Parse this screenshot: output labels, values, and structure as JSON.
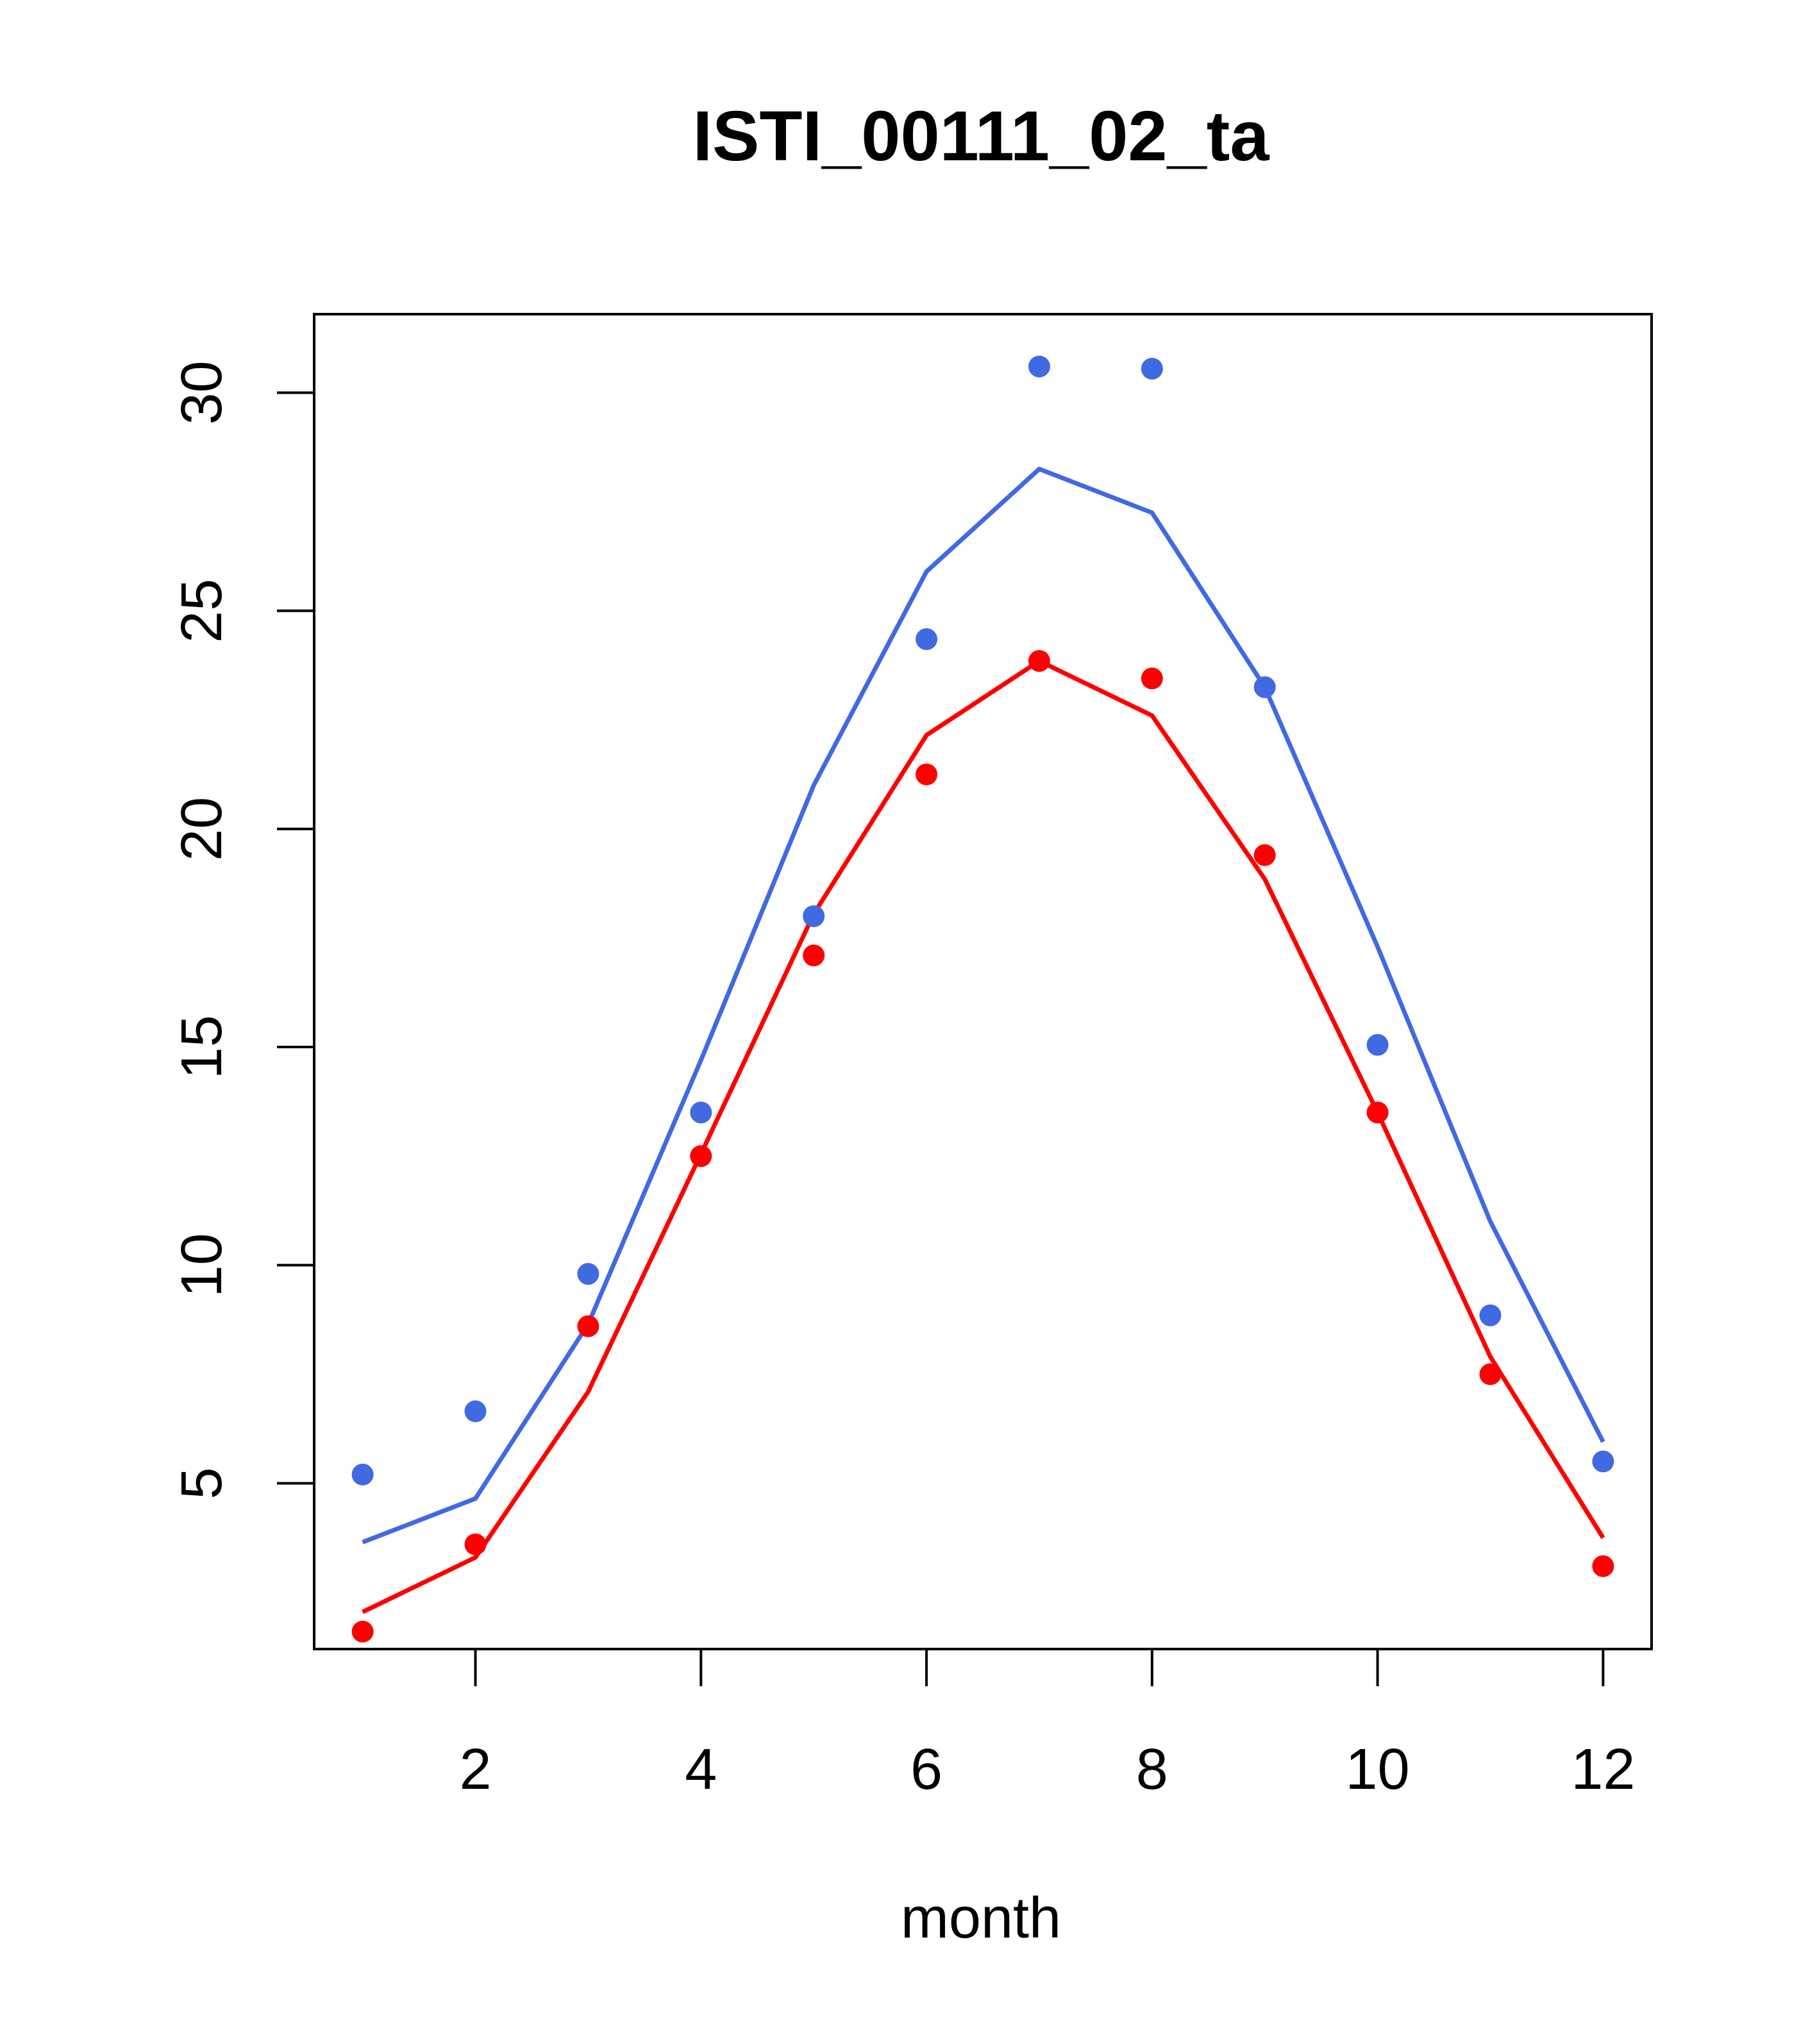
{
  "chart_data": {
    "type": "line",
    "title": "ISTI_00111_02_ta",
    "xlabel": "month",
    "ylabel": "",
    "xlim": [
      0.57,
      12.43
    ],
    "ylim": [
      1.2,
      31.8
    ],
    "x_ticks": [
      "2",
      "4",
      "6",
      "8",
      "10",
      "12"
    ],
    "y_ticks": [
      "5",
      "10",
      "15",
      "20",
      "25",
      "30"
    ],
    "grid": false,
    "x": [
      1,
      2,
      3,
      4,
      5,
      6,
      7,
      8,
      9,
      10,
      11,
      12
    ],
    "series": [
      {
        "color": "#4169e1",
        "line": [
          3.65,
          4.65,
          8.65,
          14.7,
          21.0,
          25.9,
          28.25,
          27.25,
          23.25,
          17.3,
          11.0,
          5.95
        ],
        "points": [
          5.2,
          6.65,
          9.8,
          13.5,
          18.0,
          24.35,
          30.6,
          30.55,
          23.25,
          15.05,
          8.85,
          5.5
        ]
      },
      {
        "color": "#ff0000",
        "line": [
          2.05,
          3.3,
          7.1,
          12.55,
          18.05,
          22.15,
          23.85,
          22.6,
          18.85,
          13.5,
          7.9,
          3.75
        ],
        "points": [
          1.6,
          3.6,
          8.6,
          12.5,
          17.1,
          21.25,
          23.85,
          23.45,
          19.4,
          13.5,
          7.5,
          3.1
        ]
      }
    ]
  }
}
